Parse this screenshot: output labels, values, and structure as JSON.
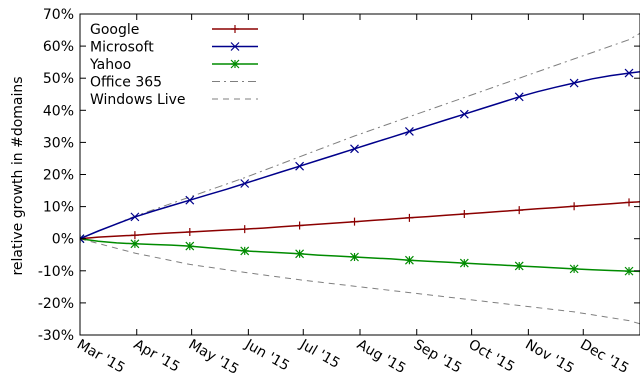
{
  "chart_data": {
    "type": "line",
    "ylabel": "relative growth in #domains",
    "ylim": [
      -30,
      70
    ],
    "yticks": [
      -30,
      -20,
      -10,
      0,
      10,
      20,
      30,
      40,
      50,
      60,
      70
    ],
    "ytick_labels": [
      "-30%",
      "-20%",
      "-10%",
      "0%",
      "10%",
      "20%",
      "30%",
      "40%",
      "50%",
      "60%",
      "70%"
    ],
    "x_range": [
      "2015-03-01",
      "2016-01-01"
    ],
    "xticks": [
      "2015-03-01",
      "2015-04-01",
      "2015-05-01",
      "2015-06-01",
      "2015-07-01",
      "2015-08-01",
      "2015-09-01",
      "2015-10-01",
      "2015-11-01",
      "2015-12-01"
    ],
    "xtick_labels": [
      "Mar '15",
      "Apr '15",
      "May '15",
      "Jun '15",
      "Jul '15",
      "Aug '15",
      "Sep '15",
      "Oct '15",
      "Nov '15",
      "Dec '15"
    ],
    "legend_position": "top-left",
    "series": [
      {
        "name": "Google",
        "color": "#8b0000",
        "marker": "plus",
        "line": "solid",
        "x": [
          "2015-03-01",
          "2015-03-11",
          "2015-03-21",
          "2015-03-31",
          "2015-04-10",
          "2015-04-20",
          "2015-04-30",
          "2015-05-10",
          "2015-05-20",
          "2015-05-30",
          "2015-06-09",
          "2015-06-19",
          "2015-06-29",
          "2015-07-09",
          "2015-07-19",
          "2015-07-29",
          "2015-08-08",
          "2015-08-18",
          "2015-08-28",
          "2015-09-07",
          "2015-09-17",
          "2015-09-27",
          "2015-10-07",
          "2015-10-17",
          "2015-10-27",
          "2015-11-06",
          "2015-11-16",
          "2015-11-26",
          "2015-12-06",
          "2015-12-16",
          "2015-12-26",
          "2016-01-01"
        ],
        "y": [
          0,
          0.5,
          0.8,
          1.1,
          1.5,
          1.8,
          2.1,
          2.4,
          2.7,
          3.0,
          3.3,
          3.7,
          4.1,
          4.5,
          4.9,
          5.3,
          5.7,
          6.1,
          6.5,
          6.9,
          7.3,
          7.7,
          8.1,
          8.5,
          8.9,
          9.3,
          9.7,
          10.1,
          10.5,
          10.9,
          11.3,
          11.5
        ]
      },
      {
        "name": "Microsoft",
        "color": "#00008b",
        "marker": "x",
        "line": "solid",
        "x": [
          "2015-03-01",
          "2015-03-11",
          "2015-03-21",
          "2015-03-31",
          "2015-04-10",
          "2015-04-20",
          "2015-04-30",
          "2015-05-10",
          "2015-05-20",
          "2015-05-30",
          "2015-06-09",
          "2015-06-19",
          "2015-06-29",
          "2015-07-09",
          "2015-07-19",
          "2015-07-29",
          "2015-08-08",
          "2015-08-18",
          "2015-08-28",
          "2015-09-07",
          "2015-09-17",
          "2015-09-27",
          "2015-10-07",
          "2015-10-17",
          "2015-10-27",
          "2015-11-06",
          "2015-11-16",
          "2015-11-26",
          "2015-12-06",
          "2015-12-16",
          "2015-12-26",
          "2016-01-01"
        ],
        "y": [
          0,
          2.4,
          4.6,
          6.8,
          8.6,
          10.3,
          12.0,
          13.7,
          15.4,
          17.2,
          19.0,
          20.8,
          22.6,
          24.4,
          26.2,
          28.0,
          29.8,
          31.6,
          33.4,
          35.2,
          37.0,
          38.8,
          40.6,
          42.4,
          44.2,
          45.8,
          47.2,
          48.5,
          49.8,
          50.8,
          51.6,
          52.0
        ]
      },
      {
        "name": "Yahoo",
        "color": "#008b00",
        "marker": "star",
        "line": "solid",
        "x": [
          "2015-03-01",
          "2015-03-11",
          "2015-03-21",
          "2015-03-31",
          "2015-04-10",
          "2015-04-20",
          "2015-04-30",
          "2015-05-10",
          "2015-05-20",
          "2015-05-30",
          "2015-06-09",
          "2015-06-19",
          "2015-06-29",
          "2015-07-09",
          "2015-07-19",
          "2015-07-29",
          "2015-08-08",
          "2015-08-18",
          "2015-08-28",
          "2015-09-07",
          "2015-09-17",
          "2015-09-27",
          "2015-10-07",
          "2015-10-17",
          "2015-10-27",
          "2015-11-06",
          "2015-11-16",
          "2015-11-26",
          "2015-12-06",
          "2015-12-16",
          "2015-12-26",
          "2016-01-01"
        ],
        "y": [
          0,
          -0.8,
          -1.3,
          -1.6,
          -1.8,
          -2.0,
          -2.3,
          -2.8,
          -3.3,
          -3.8,
          -4.1,
          -4.4,
          -4.7,
          -5.1,
          -5.4,
          -5.7,
          -6.0,
          -6.3,
          -6.7,
          -7.0,
          -7.3,
          -7.6,
          -7.9,
          -8.2,
          -8.5,
          -8.8,
          -9.1,
          -9.4,
          -9.7,
          -9.9,
          -10.1,
          -10.2
        ]
      },
      {
        "name": "Office 365",
        "color": "#7f7f7f",
        "marker": "none",
        "line": "dashdot",
        "x": [
          "2015-03-01",
          "2015-03-31",
          "2015-04-30",
          "2015-05-30",
          "2015-06-29",
          "2015-07-29",
          "2015-08-28",
          "2015-09-27",
          "2015-10-27",
          "2015-11-26",
          "2015-12-26",
          "2016-01-01"
        ],
        "y": [
          0,
          7.0,
          13.0,
          19.0,
          25.5,
          32.0,
          38.0,
          44.0,
          50.0,
          56.0,
          62.0,
          64.0
        ]
      },
      {
        "name": "Windows Live",
        "color": "#7f7f7f",
        "marker": "none",
        "line": "dashed",
        "x": [
          "2015-03-01",
          "2015-03-31",
          "2015-04-30",
          "2015-05-30",
          "2015-06-29",
          "2015-07-29",
          "2015-08-28",
          "2015-09-27",
          "2015-10-27",
          "2015-11-26",
          "2015-12-26",
          "2016-01-01"
        ],
        "y": [
          0,
          -4.5,
          -8.0,
          -10.5,
          -12.8,
          -14.8,
          -16.8,
          -18.8,
          -20.8,
          -22.8,
          -25.5,
          -26.5
        ]
      }
    ]
  }
}
